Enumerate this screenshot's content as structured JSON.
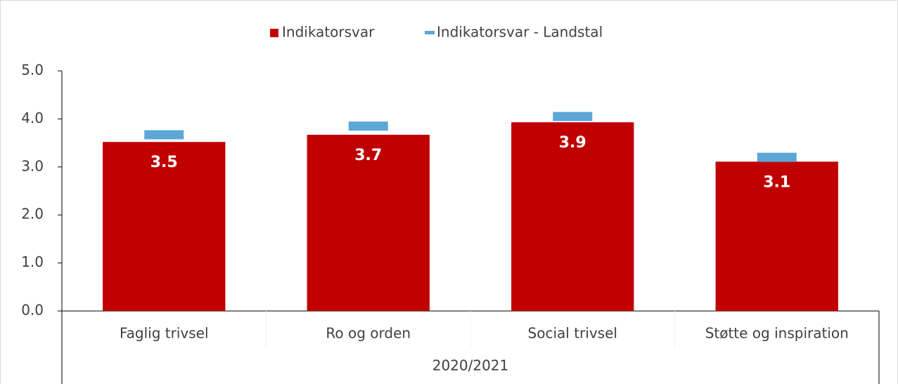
{
  "chart_data": {
    "type": "bar",
    "categories": [
      "Faglig trivsel",
      "Ro og orden",
      "Social trivsel",
      "Støtte og inspiration"
    ],
    "group_label": "2020/2021",
    "series": [
      {
        "name": "Indikatorsvar",
        "color": "#c00000",
        "type": "bar",
        "values": [
          3.52,
          3.67,
          3.93,
          3.11
        ],
        "value_labels": [
          "3.5",
          "3.7",
          "3.9",
          "3.1"
        ]
      },
      {
        "name": "Indikatorsvar - Landstal",
        "color": "#5ba7d6",
        "type": "dash",
        "values": [
          3.67,
          3.85,
          4.05,
          3.2
        ]
      }
    ],
    "ylim": [
      0,
      5
    ],
    "yticks": [
      {
        "value": 0,
        "label": "0.0"
      },
      {
        "value": 1,
        "label": "1.0"
      },
      {
        "value": 2,
        "label": "2.0"
      },
      {
        "value": 3,
        "label": "3.0"
      },
      {
        "value": 4,
        "label": "4.0"
      },
      {
        "value": 5,
        "label": "5.0"
      }
    ],
    "grid": false,
    "legend": "top"
  }
}
